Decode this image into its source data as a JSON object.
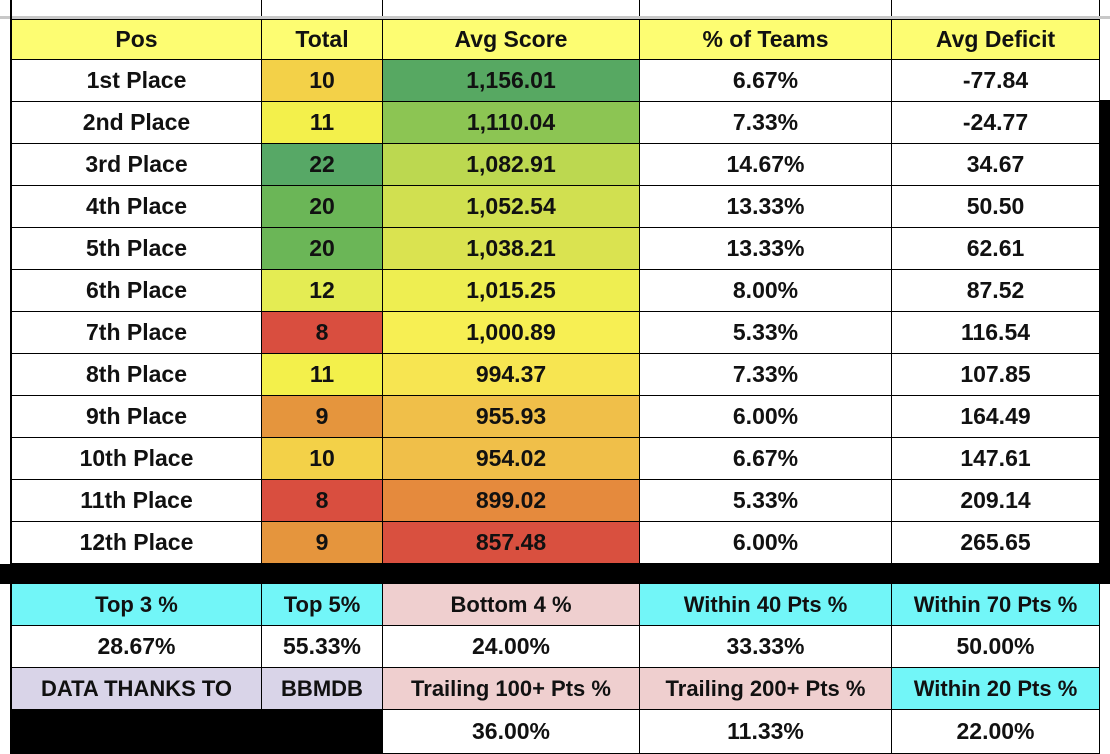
{
  "table": {
    "header": [
      "Pos",
      "Total",
      "Avg Score",
      "% of Teams",
      "Avg Deficit"
    ],
    "rows": [
      [
        "1st Place",
        "10",
        "1,156.01",
        "6.67%",
        "-77.84"
      ],
      [
        "2nd Place",
        "11",
        "1,110.04",
        "7.33%",
        "-24.77"
      ],
      [
        "3rd Place",
        "22",
        "1,082.91",
        "14.67%",
        "34.67"
      ],
      [
        "4th Place",
        "20",
        "1,052.54",
        "13.33%",
        "50.50"
      ],
      [
        "5th Place",
        "20",
        "1,038.21",
        "13.33%",
        "62.61"
      ],
      [
        "6th Place",
        "12",
        "1,015.25",
        "8.00%",
        "87.52"
      ],
      [
        "7th Place",
        "8",
        "1,000.89",
        "5.33%",
        "116.54"
      ],
      [
        "8th Place",
        "11",
        "994.37",
        "7.33%",
        "107.85"
      ],
      [
        "9th Place",
        "9",
        "955.93",
        "6.00%",
        "164.49"
      ],
      [
        "10th Place",
        "10",
        "954.02",
        "6.67%",
        "147.61"
      ],
      [
        "11th Place",
        "8",
        "899.02",
        "5.33%",
        "209.14"
      ],
      [
        "12th Place",
        "9",
        "857.48",
        "6.00%",
        "265.65"
      ]
    ]
  },
  "summary": {
    "labels_1": [
      "Top 3 %",
      "Top 5%",
      "Bottom 4 %",
      "Within 40 Pts %",
      "Within 70 Pts %"
    ],
    "values_1": [
      "28.67%",
      "55.33%",
      "24.00%",
      "33.33%",
      "50.00%"
    ],
    "labels_2": [
      "DATA THANKS TO",
      "BBMDB",
      "Trailing 100+ Pts %",
      "Trailing 200+ Pts %",
      "Within 20 Pts %"
    ],
    "values_2": [
      "36.00%",
      "11.33%",
      "22.00%"
    ]
  }
}
